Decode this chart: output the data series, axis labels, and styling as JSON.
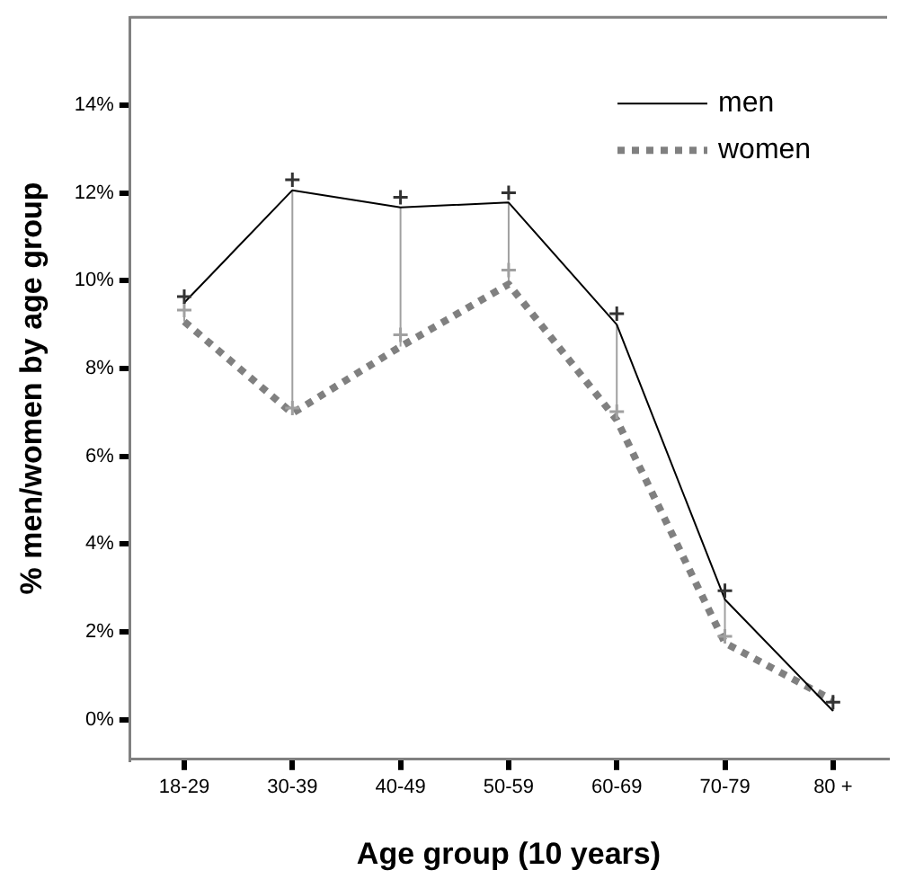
{
  "chart_data": {
    "type": "line",
    "xlabel": "Age group (10 years)",
    "ylabel": "% men/women by age group",
    "categories": [
      "18-29",
      "30-39",
      "40-49",
      "50-59",
      "60-69",
      "70-79",
      "80 +"
    ],
    "ylim": [
      -0.9,
      16
    ],
    "yticks": [
      {
        "value": 0,
        "label": "0%"
      },
      {
        "value": 2,
        "label": "2%"
      },
      {
        "value": 4,
        "label": "4%"
      },
      {
        "value": 6,
        "label": "6%"
      },
      {
        "value": 8,
        "label": "8%"
      },
      {
        "value": 10,
        "label": "10%"
      },
      {
        "value": 12,
        "label": "12%"
      },
      {
        "value": 14,
        "label": "14%"
      }
    ],
    "grid": false,
    "legend": "top right",
    "series": [
      {
        "name": "men",
        "color": "#000000",
        "line_style": "solid",
        "marker": "none",
        "values": [
          9.5,
          12.06,
          11.67,
          11.78,
          9.0,
          2.74,
          0.2
        ]
      },
      {
        "name": "women",
        "color": "#808080",
        "line_style": "dotted",
        "marker": "none",
        "values": [
          9.07,
          6.98,
          8.5,
          9.92,
          6.83,
          1.75,
          0.44
        ]
      },
      {
        "type": "scatter",
        "color": "#333333",
        "marker": "cross",
        "values": [
          9.64,
          12.3,
          11.9,
          12.0,
          9.25,
          2.94,
          0.4
        ]
      },
      {
        "type": "scatter",
        "color": "#a0a0a0",
        "marker": "cross",
        "values": [
          9.33,
          7.1,
          8.77,
          10.24,
          7.02,
          1.9,
          null
        ]
      }
    ]
  }
}
